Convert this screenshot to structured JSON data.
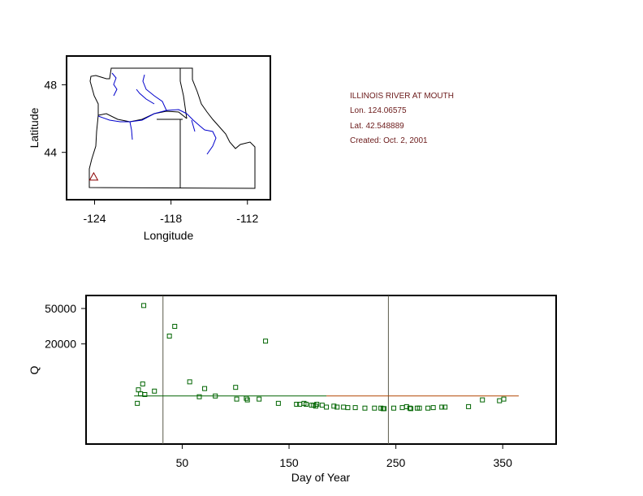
{
  "info": {
    "station": "ILLINOIS RIVER AT MOUTH",
    "lon": "Lon. 124.06575",
    "lat": "Lat. 42.548889",
    "created": "Created:   Oct. 2, 2001"
  },
  "colors": {
    "points": "#006400",
    "river": "#0000cc",
    "median_line": "#b34700",
    "ref_line": "#5b5b4a",
    "marker": "#8b0000"
  },
  "chart_data": [
    {
      "type": "map",
      "xlabel": "Longitude",
      "ylabel": "Latitude",
      "xticks": [
        -124,
        -118,
        -112
      ],
      "yticks": [
        48,
        44
      ],
      "xlim": [
        -126.2,
        -110.2
      ],
      "ylim": [
        41.2,
        49.7
      ],
      "station_marker": {
        "lon": -124.07,
        "lat": 42.55,
        "symbol": "triangle"
      }
    },
    {
      "type": "scatter",
      "xlabel": "Day of Year",
      "ylabel": "Q",
      "xticks": [
        50,
        150,
        250,
        350
      ],
      "yticks": [
        20000,
        50000
      ],
      "xlim": [
        -40,
        400
      ],
      "y_scale": "log",
      "ylim": [
        1500,
        70000
      ],
      "vertical_lines": [
        32,
        243
      ],
      "reference_line": {
        "x": [
          5,
          365
        ],
        "y": 5200
      },
      "points": [
        [
          8,
          4300
        ],
        [
          9,
          6100
        ],
        [
          11,
          5500
        ],
        [
          13,
          7100
        ],
        [
          14,
          54000
        ],
        [
          15,
          5400
        ],
        [
          24,
          5900
        ],
        [
          38,
          24500
        ],
        [
          43,
          31500
        ],
        [
          57,
          7500
        ],
        [
          66,
          5100
        ],
        [
          71,
          6300
        ],
        [
          81,
          5200
        ],
        [
          100,
          6500
        ],
        [
          101,
          4800
        ],
        [
          110,
          4900
        ],
        [
          111,
          4700
        ],
        [
          122,
          4800
        ],
        [
          128,
          21500
        ],
        [
          140,
          4300
        ],
        [
          157,
          4200
        ],
        [
          160,
          4200
        ],
        [
          164,
          4300
        ],
        [
          166,
          4200
        ],
        [
          171,
          4100
        ],
        [
          173,
          4100
        ],
        [
          175,
          4000
        ],
        [
          176,
          4200
        ],
        [
          181,
          4100
        ],
        [
          185,
          3900
        ],
        [
          192,
          4000
        ],
        [
          195,
          3900
        ],
        [
          201,
          3900
        ],
        [
          205,
          3850
        ],
        [
          212,
          3850
        ],
        [
          221,
          3800
        ],
        [
          230,
          3800
        ],
        [
          236,
          3800
        ],
        [
          238,
          3750
        ],
        [
          239,
          3750
        ],
        [
          248,
          3800
        ],
        [
          256,
          3850
        ],
        [
          260,
          3950
        ],
        [
          263,
          3800
        ],
        [
          264,
          3750
        ],
        [
          270,
          3800
        ],
        [
          272,
          3800
        ],
        [
          280,
          3800
        ],
        [
          285,
          3850
        ],
        [
          293,
          3900
        ],
        [
          296,
          3900
        ],
        [
          318,
          3950
        ],
        [
          331,
          4700
        ],
        [
          347,
          4600
        ],
        [
          351,
          4800
        ]
      ]
    }
  ]
}
